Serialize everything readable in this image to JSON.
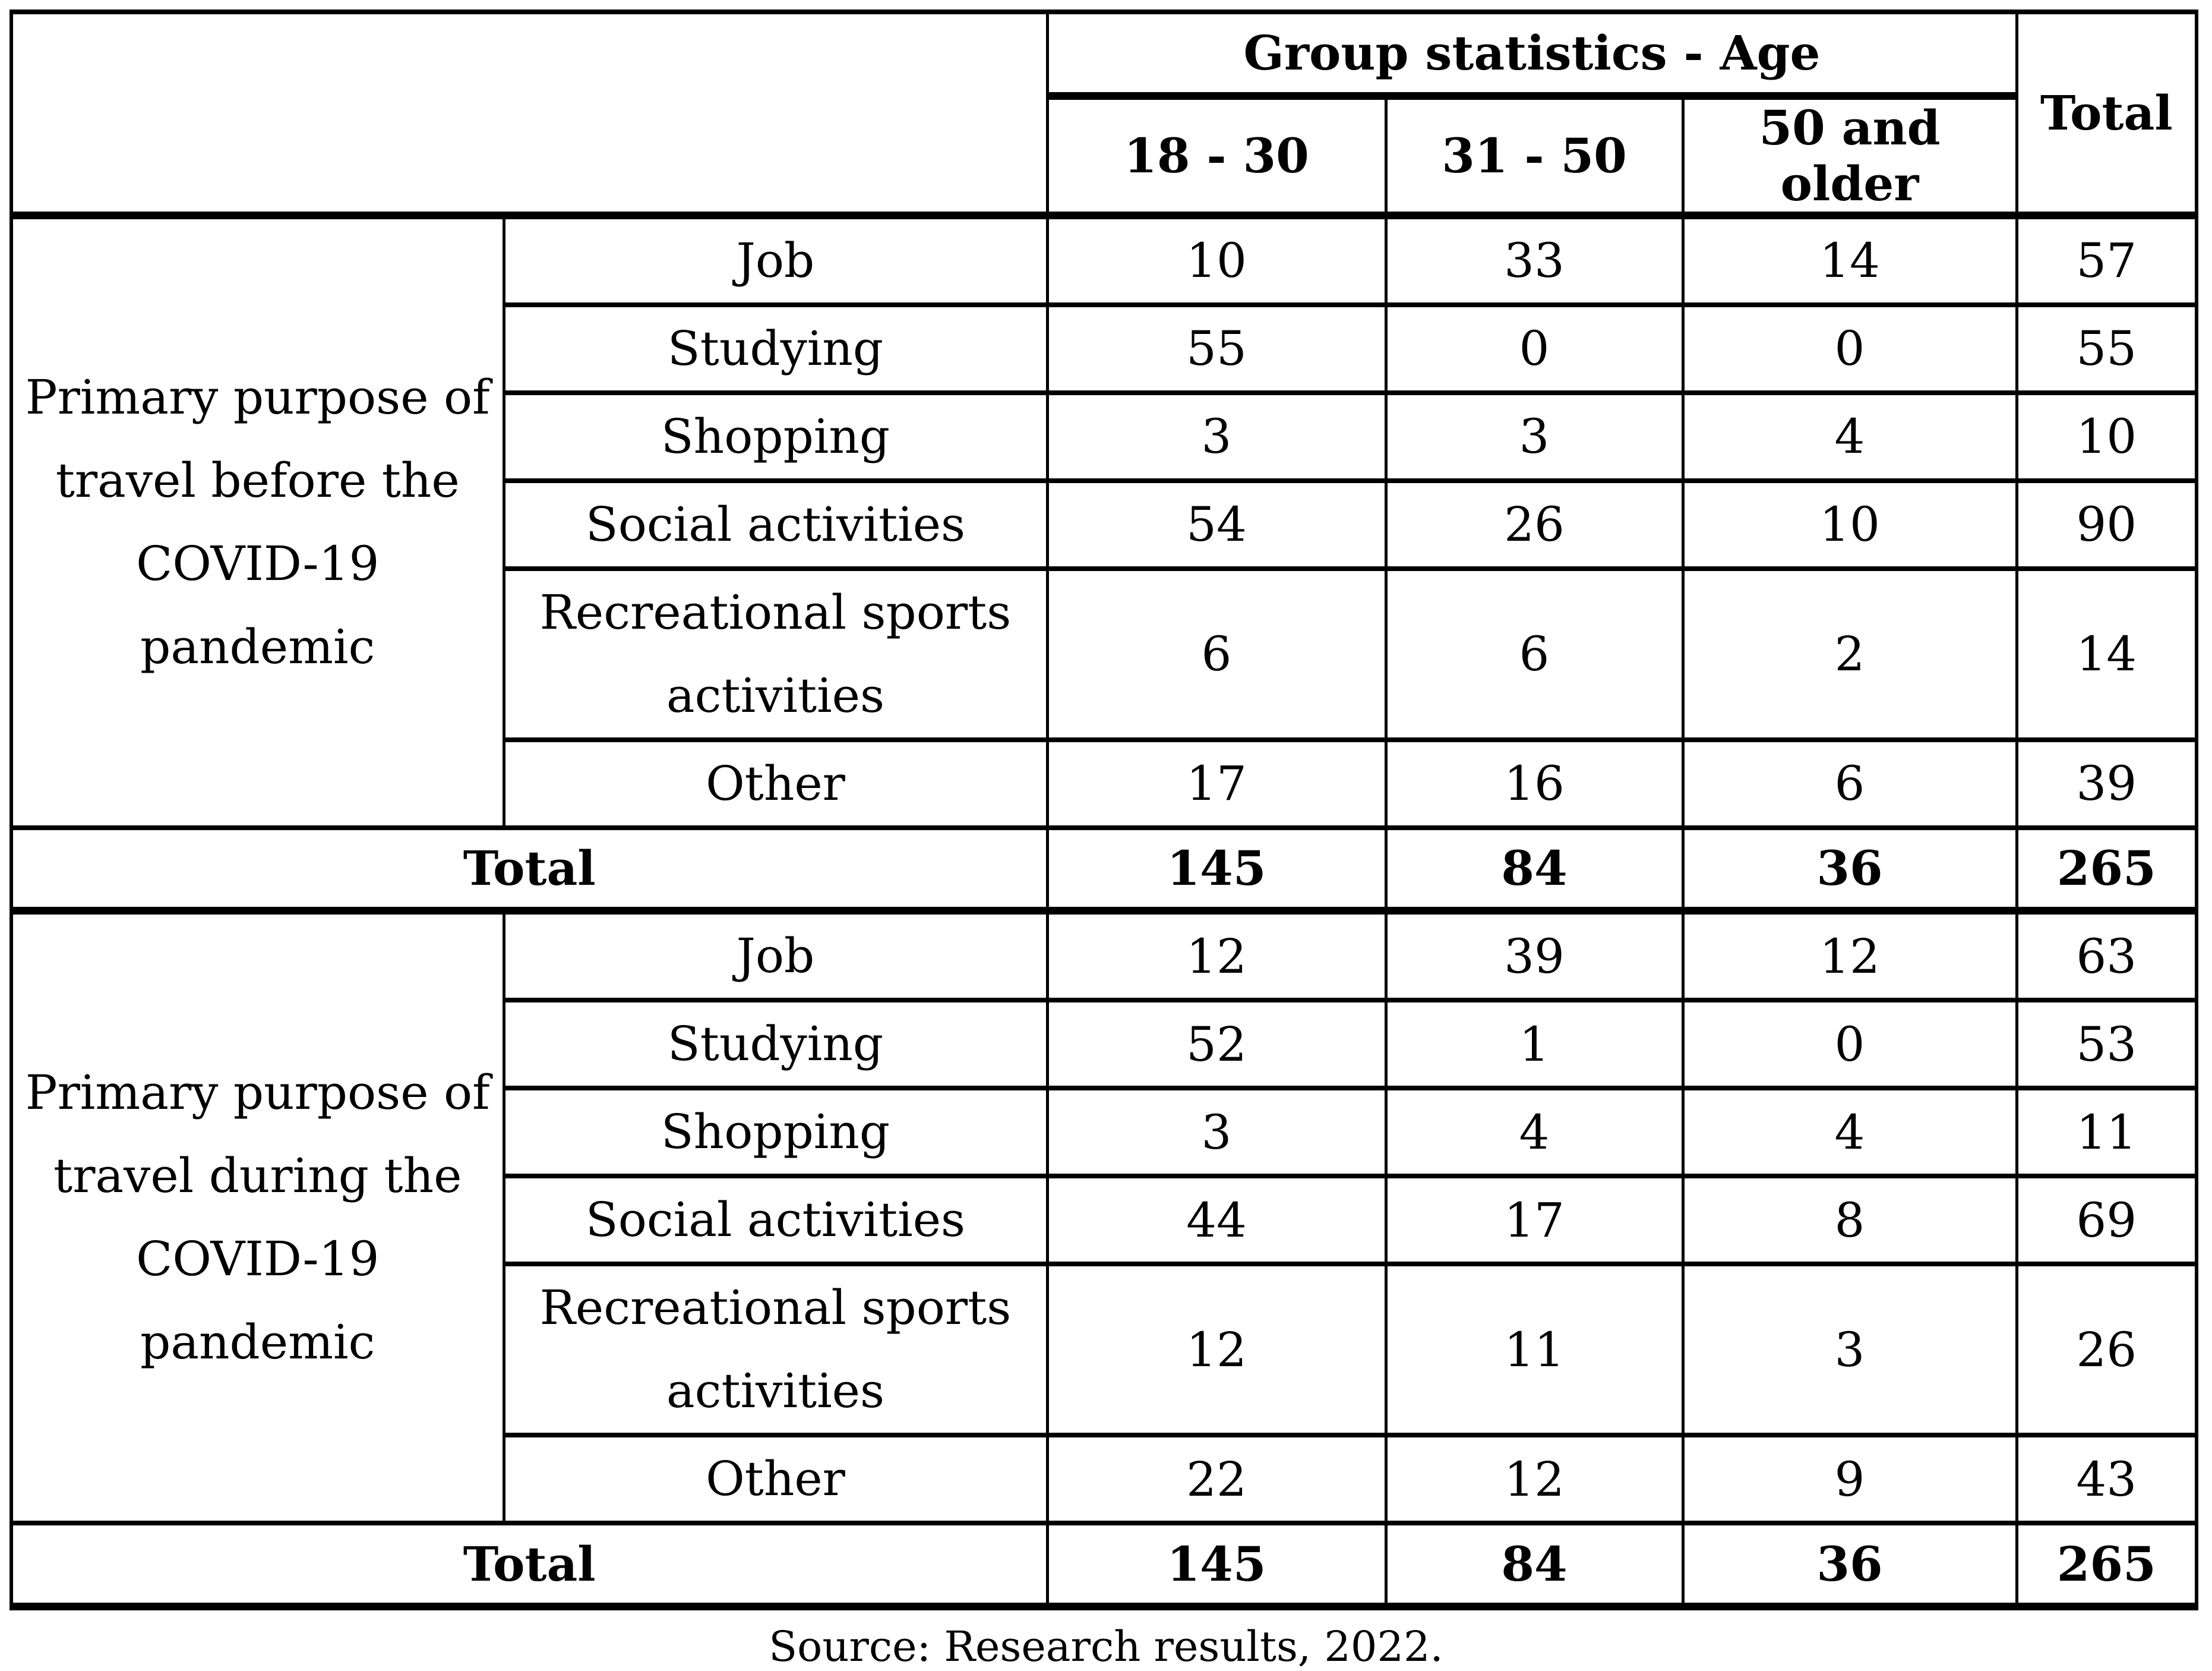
{
  "page": {
    "source_note": "Source: Research results, 2022.",
    "colors": {
      "text": "#000000",
      "border": "#000000",
      "background": "#ffffff"
    }
  },
  "table": {
    "header": {
      "group_title": "Group statistics - Age",
      "age_columns": [
        "18 - 30",
        "31 - 50",
        "50 and older"
      ],
      "total_label": "Total"
    },
    "sections": [
      {
        "group_label_lines": [
          "Primary purpose of",
          "travel before the",
          "COVID-19 pandemic"
        ],
        "rows": [
          {
            "label": "Job",
            "values": [
              10,
              33,
              14,
              57
            ]
          },
          {
            "label": "Studying",
            "values": [
              55,
              0,
              0,
              55
            ]
          },
          {
            "label": "Shopping",
            "values": [
              3,
              3,
              4,
              10
            ]
          },
          {
            "label": "Social activities",
            "values": [
              54,
              26,
              10,
              90
            ]
          },
          {
            "label_lines": [
              "Recreational sports",
              "activities"
            ],
            "values": [
              6,
              6,
              2,
              14
            ]
          },
          {
            "label": "Other",
            "values": [
              17,
              16,
              6,
              39
            ]
          }
        ],
        "total_row": {
          "label": "Total",
          "values": [
            145,
            84,
            36,
            265
          ]
        }
      },
      {
        "group_label_lines": [
          "Primary purpose of",
          "travel during the",
          "COVID-19 pandemic"
        ],
        "rows": [
          {
            "label": "Job",
            "values": [
              12,
              39,
              12,
              63
            ]
          },
          {
            "label": "Studying",
            "values": [
              52,
              1,
              0,
              53
            ]
          },
          {
            "label": "Shopping",
            "values": [
              3,
              4,
              4,
              11
            ]
          },
          {
            "label": "Social activities",
            "values": [
              44,
              17,
              8,
              69
            ]
          },
          {
            "label_lines": [
              "Recreational sports",
              "activities"
            ],
            "values": [
              12,
              11,
              3,
              26
            ]
          },
          {
            "label": "Other",
            "values": [
              22,
              12,
              9,
              43
            ]
          }
        ],
        "total_row": {
          "label": "Total",
          "values": [
            145,
            84,
            36,
            265
          ]
        }
      }
    ]
  }
}
